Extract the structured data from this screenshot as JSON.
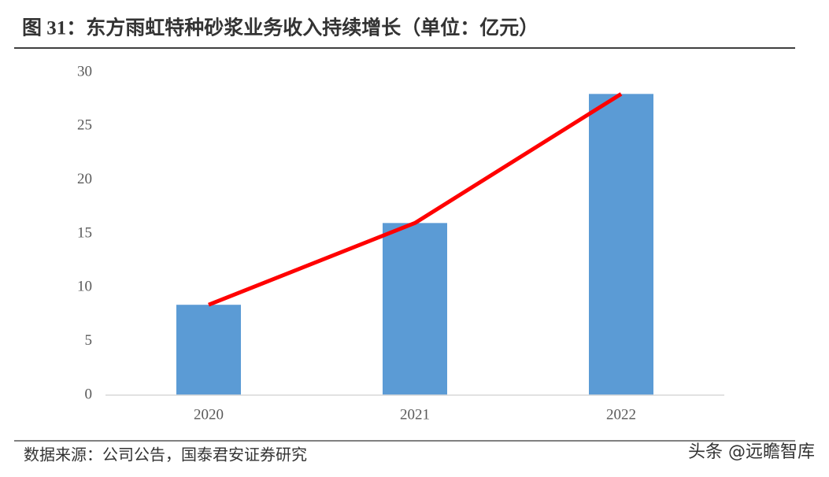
{
  "chart_data": {
    "type": "bar",
    "title": "图 31：东方雨虹特种砂浆业务收入持续增长（单位：亿元）",
    "source": "数据来源：公司公告，国泰君安证券研究",
    "watermark": "头条 @远瞻智库",
    "categories": [
      "2020",
      "2021",
      "2022"
    ],
    "series": [
      {
        "type": "bar",
        "color": "#5b9bd5",
        "values": [
          8.4,
          16,
          28
        ]
      },
      {
        "type": "line",
        "color": "#ff0000",
        "values": [
          8.4,
          16,
          28
        ]
      }
    ],
    "ylim": [
      0,
      30
    ],
    "yticks": [
      0,
      5,
      10,
      15,
      20,
      25,
      30
    ],
    "grid": false
  }
}
